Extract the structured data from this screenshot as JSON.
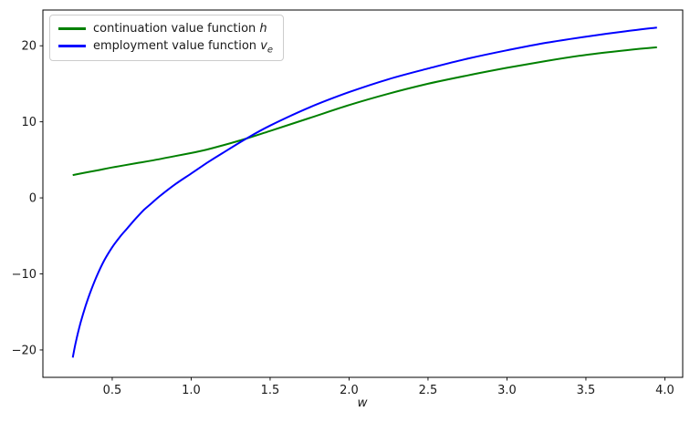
{
  "chart_data": {
    "type": "line",
    "title": "",
    "xlabel": "w",
    "ylabel": "",
    "xlim": [
      0.061,
      4.113
    ],
    "ylim": [
      -23.6,
      24.7
    ],
    "grid": false,
    "x_ticks": [
      {
        "v": 0.5,
        "label": "0.5"
      },
      {
        "v": 1.0,
        "label": "1.0"
      },
      {
        "v": 1.5,
        "label": "1.5"
      },
      {
        "v": 2.0,
        "label": "2.0"
      },
      {
        "v": 2.5,
        "label": "2.5"
      },
      {
        "v": 3.0,
        "label": "3.0"
      },
      {
        "v": 3.5,
        "label": "3.5"
      },
      {
        "v": 4.0,
        "label": "4.0"
      }
    ],
    "y_ticks": [
      {
        "v": -20,
        "label": "−20"
      },
      {
        "v": -10,
        "label": "−10"
      },
      {
        "v": 0,
        "label": "0"
      },
      {
        "v": 10,
        "label": "10"
      },
      {
        "v": 20,
        "label": "20"
      }
    ],
    "legend": {
      "position": "upper left",
      "entries": [
        {
          "prefix": "continuation value function ",
          "math": "h",
          "sub": ""
        },
        {
          "prefix": "employment value function ",
          "math": "v",
          "sub": "e"
        }
      ]
    },
    "series": [
      {
        "name": "continuation-value-function-h",
        "color": "#008000",
        "line_width": 2,
        "points": [
          [
            0.25,
            3.0
          ],
          [
            0.4,
            3.6
          ],
          [
            0.5,
            4.0
          ],
          [
            0.65,
            4.55
          ],
          [
            0.75,
            4.9
          ],
          [
            0.9,
            5.5
          ],
          [
            1.0,
            5.9
          ],
          [
            1.1,
            6.35
          ],
          [
            1.2,
            6.9
          ],
          [
            1.35,
            7.8
          ],
          [
            1.5,
            8.8
          ],
          [
            1.75,
            10.5
          ],
          [
            2.0,
            12.2
          ],
          [
            2.25,
            13.7
          ],
          [
            2.5,
            15.0
          ],
          [
            2.75,
            16.1
          ],
          [
            3.0,
            17.1
          ],
          [
            3.25,
            18.0
          ],
          [
            3.5,
            18.8
          ],
          [
            3.75,
            19.4
          ],
          [
            3.95,
            19.8
          ]
        ]
      },
      {
        "name": "employment-value-function-ve",
        "color": "#0000ff",
        "line_width": 2,
        "points": [
          [
            0.25,
            -21.0
          ],
          [
            0.27,
            -18.9
          ],
          [
            0.3,
            -16.4
          ],
          [
            0.33,
            -14.3
          ],
          [
            0.36,
            -12.5
          ],
          [
            0.4,
            -10.4
          ],
          [
            0.45,
            -8.2
          ],
          [
            0.5,
            -6.5
          ],
          [
            0.55,
            -5.1
          ],
          [
            0.6,
            -3.9
          ],
          [
            0.65,
            -2.7
          ],
          [
            0.7,
            -1.6
          ],
          [
            0.75,
            -0.7
          ],
          [
            0.8,
            0.2
          ],
          [
            0.9,
            1.8
          ],
          [
            1.0,
            3.2
          ],
          [
            1.1,
            4.6
          ],
          [
            1.2,
            5.9
          ],
          [
            1.35,
            7.8
          ],
          [
            1.5,
            9.5
          ],
          [
            1.75,
            11.9
          ],
          [
            2.0,
            13.9
          ],
          [
            2.25,
            15.6
          ],
          [
            2.5,
            17.0
          ],
          [
            2.75,
            18.3
          ],
          [
            3.0,
            19.4
          ],
          [
            3.25,
            20.4
          ],
          [
            3.5,
            21.2
          ],
          [
            3.75,
            21.9
          ],
          [
            3.95,
            22.4
          ]
        ]
      }
    ]
  }
}
